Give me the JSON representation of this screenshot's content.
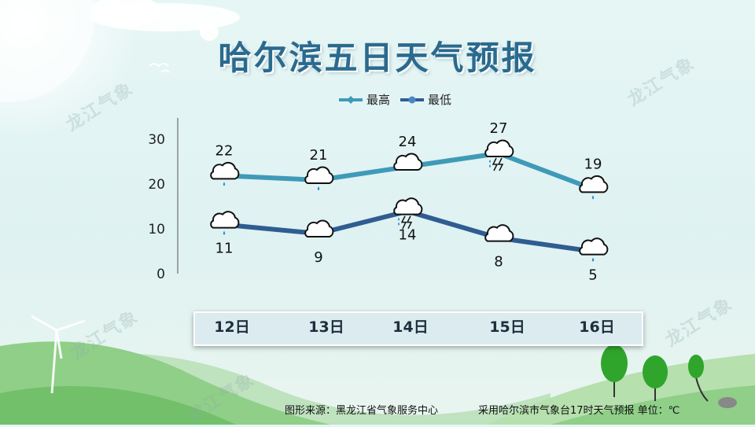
{
  "title": "哈尔滨五日天气预报",
  "watermark": "龙江气象",
  "colors": {
    "high": "#3f9ab8",
    "low": "#2f5d91",
    "title": "#2a6a8e"
  },
  "chart_data": {
    "type": "line",
    "categories": [
      "12日",
      "13日",
      "14日",
      "15日",
      "16日"
    ],
    "series": [
      {
        "name": "最高",
        "values": [
          22,
          21,
          24,
          27,
          19
        ],
        "icons": [
          "light-rain-icon",
          "light-rain-icon",
          "cloudy-icon",
          "thunderstorm-icon",
          "light-rain-icon"
        ]
      },
      {
        "name": "最低",
        "values": [
          11,
          9,
          14,
          8,
          5
        ],
        "icons": [
          "light-rain-icon",
          "cloudy-icon",
          "thunderstorm-icon",
          "cloudy-icon",
          "light-rain-icon"
        ]
      }
    ],
    "y_ticks": [
      "30",
      "20",
      "10",
      "0"
    ],
    "ylim": [
      0,
      30
    ],
    "legend": "top-center",
    "grid": false
  },
  "footer": {
    "source": "图形来源：黑龙江省气象服务中心",
    "note": "采用哈尔滨市气象台17时天气预报 单位：℃"
  }
}
